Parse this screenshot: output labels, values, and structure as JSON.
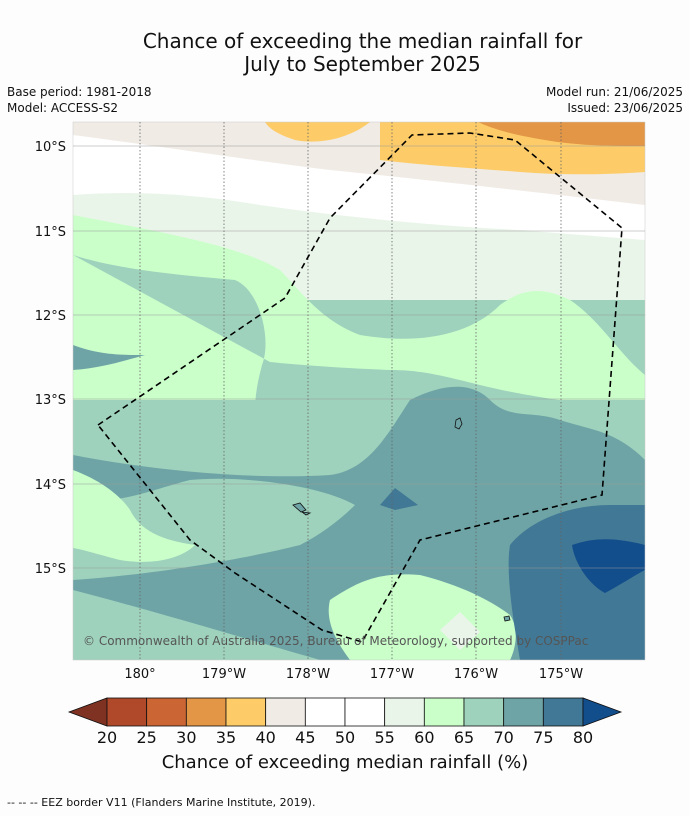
{
  "title": {
    "line1": "Chance of exceeding the median rainfall for",
    "line2": "July to September 2025"
  },
  "meta": {
    "base_period": "Base period: 1981-2018",
    "model": "Model: ACCESS-S2",
    "model_run": "Model run: 21/06/2025",
    "issued": "Issued: 23/06/2025"
  },
  "map": {
    "lat_labels": [
      "10°S",
      "11°S",
      "12°S",
      "13°S",
      "14°S",
      "15°S"
    ],
    "lon_labels": [
      "180°",
      "179°W",
      "178°W",
      "177°W",
      "176°W",
      "175°W"
    ],
    "copyright": "© Commonwealth of Australia 2025, Bureau of Meteorology, supported by COSPPac"
  },
  "colorbar": {
    "ticks": [
      "20",
      "25",
      "30",
      "35",
      "40",
      "45",
      "50",
      "55",
      "60",
      "65",
      "70",
      "75",
      "80"
    ],
    "colors": [
      "#7f3222",
      "#b0482a",
      "#cc6534",
      "#e29646",
      "#fdcc68",
      "#f0ebe5",
      "#ffffff",
      "#ffffff",
      "#eaf5ea",
      "#caffca",
      "#9ed2bc",
      "#6ea4a6",
      "#417895",
      "#124d8c"
    ],
    "label": "Chance of exceeding median rainfall (%)"
  },
  "footer": "--  --  -- EEZ border V11 (Flanders Marine Institute, 2019)."
}
